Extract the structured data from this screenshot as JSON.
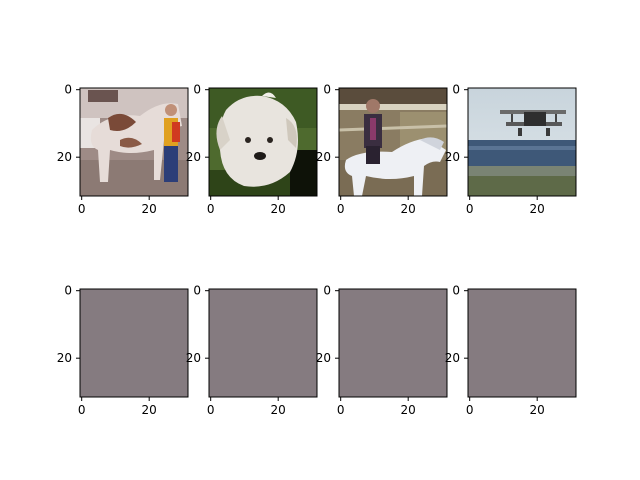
{
  "figure": {
    "description_free": true,
    "rows": 2,
    "cols": 4
  },
  "chart_data": {
    "type": "image_grid",
    "image_size": [
      32,
      32
    ],
    "xticks": [
      "0",
      "20"
    ],
    "yticks": [
      "0",
      "20"
    ],
    "xtick_values": [
      0,
      20
    ],
    "ytick_values": [
      0,
      20
    ],
    "panels": [
      {
        "row": 0,
        "content": "horse-with-person",
        "kind": "photo"
      },
      {
        "row": 0,
        "content": "white-puppy",
        "kind": "photo"
      },
      {
        "row": 0,
        "content": "rider-on-white-horse",
        "kind": "photo"
      },
      {
        "row": 0,
        "content": "biplane",
        "kind": "photo"
      },
      {
        "row": 1,
        "content": "uniform",
        "kind": "flat",
        "color": "#857b80"
      },
      {
        "row": 1,
        "content": "uniform",
        "kind": "flat",
        "color": "#857b80"
      },
      {
        "row": 1,
        "content": "uniform",
        "kind": "flat",
        "color": "#857b80"
      },
      {
        "row": 1,
        "content": "uniform",
        "kind": "flat",
        "color": "#857b80"
      }
    ]
  }
}
